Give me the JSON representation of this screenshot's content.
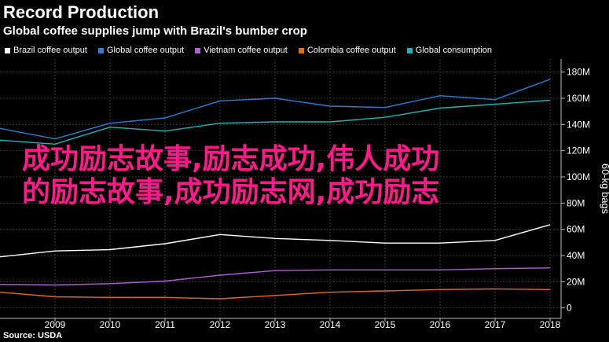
{
  "title": "Record Production",
  "subtitle": "Global coffee supplies jump with Brazil's bumber crop",
  "source": "Source: USDA",
  "watermark_lines": [
    "成功励志故事,励志成功,伟人成功",
    "的励志故事,成功励志网,成功励志"
  ],
  "chart_data": {
    "type": "line",
    "x": [
      2008,
      2009,
      2010,
      2011,
      2012,
      2013,
      2014,
      2015,
      2016,
      2017,
      2018
    ],
    "xticks": [
      "2009",
      "2010",
      "2011",
      "2012",
      "2013",
      "2014",
      "2015",
      "2016",
      "2017",
      "2018"
    ],
    "xlim": [
      2008,
      2018.2
    ],
    "ylim": [
      -8000000,
      190000000
    ],
    "yticks": [
      0,
      20000000,
      40000000,
      60000000,
      80000000,
      100000000,
      120000000,
      140000000,
      160000000,
      180000000
    ],
    "ytick_labels": [
      "0",
      "20M",
      "40M",
      "60M",
      "80M",
      "100M",
      "120M",
      "140M",
      "160M",
      "180M"
    ],
    "ylabel": "60-kg bags",
    "axis_position": "right",
    "grid": true,
    "legend_position": "top-left",
    "series": [
      {
        "name": "Brazil coffee output",
        "color": "#ffffff",
        "values": [
          39000000,
          43500000,
          44500000,
          49000000,
          56000000,
          53000000,
          51500000,
          49500000,
          49500000,
          51500000,
          63500000
        ]
      },
      {
        "name": "Global coffee output",
        "color": "#2a7fd4",
        "values": [
          137000000,
          129000000,
          141000000,
          145000000,
          158000000,
          160000000,
          154000000,
          153000000,
          162000000,
          159000000,
          174500000
        ]
      },
      {
        "name": "Vietnam coffee output",
        "color": "#b05fd6",
        "values": [
          18000000,
          17500000,
          18500000,
          20500000,
          25000000,
          28500000,
          29000000,
          29000000,
          29000000,
          30000000,
          30500000
        ]
      },
      {
        "name": "Colombia coffee output",
        "color": "#e86a17",
        "values": [
          12000000,
          8500000,
          8000000,
          8000000,
          7000000,
          9500000,
          12000000,
          13000000,
          14000000,
          14500000,
          14000000
        ]
      },
      {
        "name": "Global consumption",
        "color": "#1fb5b5",
        "values": [
          128000000,
          125000000,
          138000000,
          135000000,
          141000000,
          142000000,
          142000000,
          145500000,
          152500000,
          155500000,
          158500000
        ]
      }
    ]
  }
}
